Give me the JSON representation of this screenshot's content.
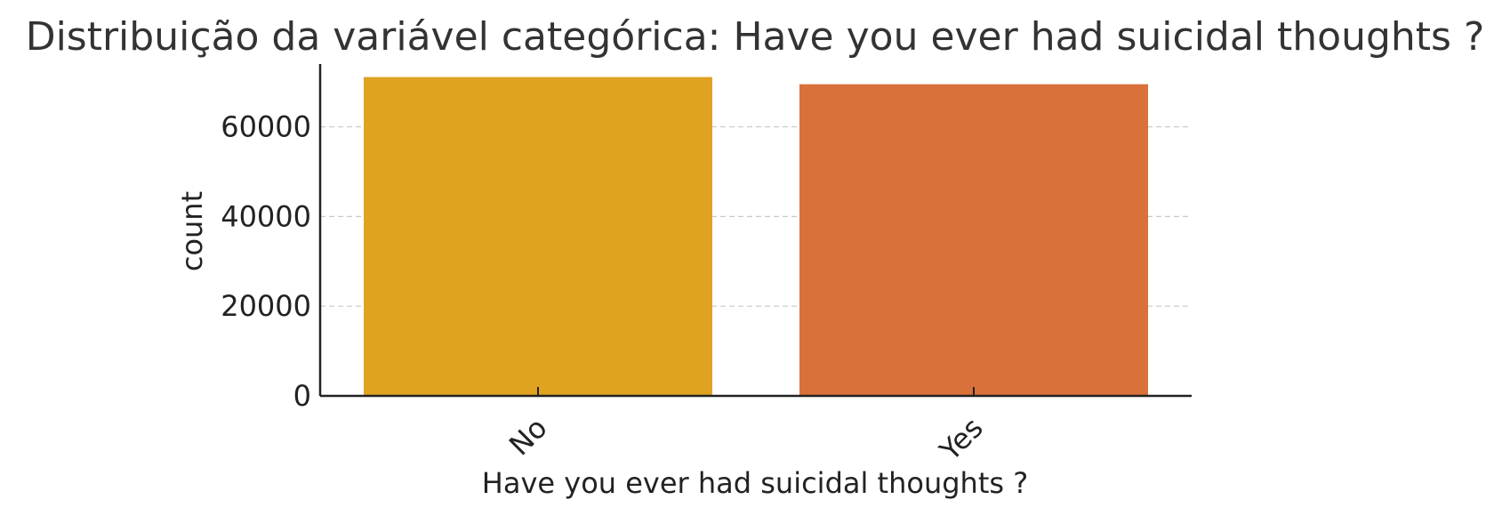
{
  "chart_data": {
    "type": "bar",
    "title": "Distribuição da variável categórica: Have you ever had suicidal thoughts ?",
    "xlabel": "Have you ever had suicidal thoughts ?",
    "ylabel": "count",
    "categories": [
      "No",
      "Yes"
    ],
    "values": [
      71100,
      69500
    ],
    "colors": [
      "#DFA321",
      "#D9713A"
    ],
    "ylim": [
      0,
      74000
    ],
    "yticks": [
      0,
      20000,
      40000,
      60000
    ],
    "ytick_labels": [
      "0",
      "20000",
      "40000",
      "60000"
    ],
    "grid": "y-dashed",
    "legend": "none"
  }
}
